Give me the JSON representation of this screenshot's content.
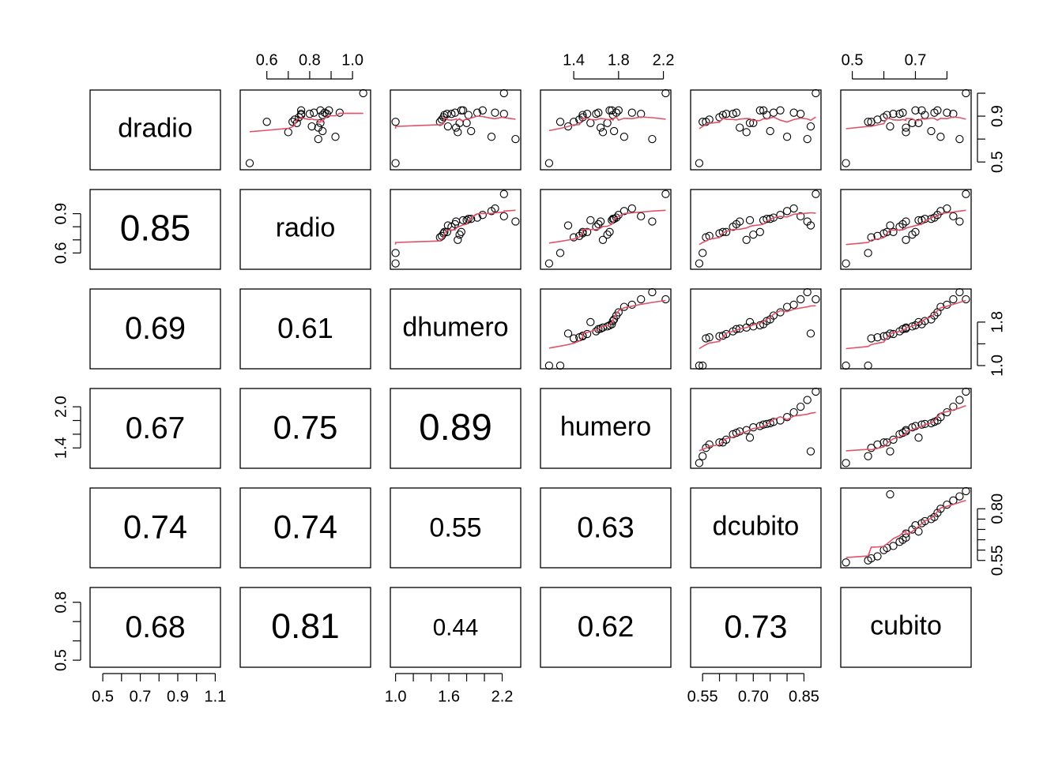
{
  "chart_data": {
    "type": "scatter",
    "title": "",
    "grid": false,
    "variables": [
      "dradio",
      "radio",
      "dhumero",
      "humero",
      "dcubito",
      "cubito"
    ],
    "colors": {
      "points": "#000000",
      "smooth_line": "#df536b",
      "panel_border": "#000000"
    },
    "axes": [
      {
        "name": "dradio",
        "range": [
          0.46,
          1.1
        ],
        "ticks": [
          0.5,
          0.7,
          0.9
        ],
        "tick_labels": [
          "0.5",
          "0.7",
          "0.9"
        ],
        "minor_ticks": [
          0.5,
          0.6,
          0.7,
          0.8,
          0.9,
          1.0,
          1.1
        ],
        "minor_tick_labels": [
          "0.5",
          "0.7",
          "0.9",
          "1.1"
        ],
        "scale": "linear"
      },
      {
        "name": "radio",
        "range": [
          0.5,
          1.06
        ],
        "ticks": [
          0.6,
          0.9
        ],
        "tick_labels": [
          "0.6",
          "0.9"
        ],
        "top_ticks": [
          0.6,
          0.7,
          0.8,
          0.9,
          1.0
        ],
        "top_tick_labels": [
          "0.6",
          "0.8",
          "1.0"
        ],
        "scale": "linear"
      },
      {
        "name": "dhumero",
        "range": [
          1.0,
          2.35
        ],
        "ticks": [
          1.0,
          1.6,
          2.2
        ],
        "tick_labels": [
          "1.0",
          "1.6",
          "2.2"
        ],
        "right_ticks": [
          1.0,
          1.4,
          1.8
        ],
        "right_tick_labels": [
          "1.0",
          "1.8"
        ],
        "scale": "linear"
      },
      {
        "name": "humero",
        "range": [
          1.15,
          2.22
        ],
        "ticks": [
          1.4,
          1.6,
          1.8,
          2.0
        ],
        "tick_labels": [
          "1.4",
          "2.0"
        ],
        "top_ticks": [
          1.4,
          1.8,
          2.2
        ],
        "top_tick_labels": [
          "1.4",
          "1.8",
          "2.2"
        ],
        "scale": "linear"
      },
      {
        "name": "dcubito",
        "range": [
          0.53,
          0.885
        ],
        "ticks": [
          0.55,
          0.7,
          0.85
        ],
        "tick_labels": [
          "0.55",
          "0.70",
          "0.85"
        ],
        "right_ticks": [
          0.55,
          0.8
        ],
        "right_tick_labels": [
          "0.55",
          "0.80"
        ],
        "scale": "linear"
      },
      {
        "name": "cubito",
        "range": [
          0.48,
          0.86
        ],
        "ticks": [
          0.5,
          0.8
        ],
        "tick_labels": [
          "0.5",
          "0.8"
        ],
        "top_ticks": [
          0.5,
          0.6,
          0.7,
          0.8
        ],
        "top_tick_labels": [
          "0.5",
          "0.7"
        ],
        "right_ticks": [
          0.5,
          0.7,
          0.9
        ],
        "right_tick_labels": [
          "0.5",
          "0.9"
        ],
        "scale": "linear"
      }
    ],
    "correlations": [
      {
        "row": 1,
        "col": 0,
        "value": "0.85"
      },
      {
        "row": 2,
        "col": 0,
        "value": "0.69"
      },
      {
        "row": 2,
        "col": 1,
        "value": "0.61"
      },
      {
        "row": 3,
        "col": 0,
        "value": "0.67"
      },
      {
        "row": 3,
        "col": 1,
        "value": "0.75"
      },
      {
        "row": 3,
        "col": 2,
        "value": "0.89"
      },
      {
        "row": 4,
        "col": 0,
        "value": "0.74"
      },
      {
        "row": 4,
        "col": 1,
        "value": "0.74"
      },
      {
        "row": 4,
        "col": 2,
        "value": "0.55"
      },
      {
        "row": 4,
        "col": 3,
        "value": "0.63"
      },
      {
        "row": 5,
        "col": 0,
        "value": "0.68"
      },
      {
        "row": 5,
        "col": 1,
        "value": "0.81"
      },
      {
        "row": 5,
        "col": 2,
        "value": "0.44"
      },
      {
        "row": 5,
        "col": 3,
        "value": "0.62"
      },
      {
        "row": 5,
        "col": 4,
        "value": "0.73"
      }
    ],
    "observations": {
      "dradio": [
        1.1,
        0.49,
        0.85,
        0.85,
        0.87,
        0.89,
        0.91,
        0.92,
        0.92,
        0.93,
        0.8,
        0.76,
        0.84,
        0.95,
        0.95,
        0.91,
        0.77,
        0.93,
        0.95,
        0.72,
        0.93,
        0.92,
        0.7,
        0.81,
        0.84
      ],
      "radio": [
        1.05,
        0.52,
        0.6,
        0.72,
        0.73,
        0.75,
        0.76,
        0.76,
        0.8,
        0.82,
        0.84,
        0.7,
        0.74,
        0.76,
        0.85,
        0.86,
        0.86,
        0.87,
        0.89,
        0.92,
        0.94,
        0.88,
        0.84,
        0.81,
        0.85
      ],
      "dhumero": [
        2.22,
        1.0,
        1.0,
        1.5,
        1.52,
        1.54,
        1.55,
        1.58,
        1.63,
        1.67,
        1.68,
        1.7,
        1.72,
        1.74,
        1.76,
        1.82,
        1.85,
        1.92,
        1.98,
        2.08,
        2.12,
        2.22,
        2.35,
        1.59,
        1.8
      ],
      "humero": [
        2.22,
        1.18,
        1.28,
        1.4,
        1.45,
        1.48,
        1.48,
        1.52,
        1.6,
        1.62,
        1.64,
        1.66,
        1.7,
        1.72,
        1.74,
        1.75,
        1.76,
        1.78,
        1.8,
        1.85,
        1.92,
        2.0,
        2.1,
        1.35,
        1.55
      ],
      "dcubito": [
        0.885,
        0.54,
        0.55,
        0.56,
        0.57,
        0.6,
        0.61,
        0.62,
        0.64,
        0.65,
        0.66,
        0.68,
        0.7,
        0.72,
        0.73,
        0.74,
        0.75,
        0.76,
        0.78,
        0.8,
        0.82,
        0.84,
        0.86,
        0.87,
        0.69
      ],
      "cubito": [
        0.86,
        0.48,
        0.55,
        0.56,
        0.58,
        0.6,
        0.61,
        0.63,
        0.65,
        0.66,
        0.67,
        0.67,
        0.69,
        0.7,
        0.72,
        0.73,
        0.75,
        0.76,
        0.77,
        0.78,
        0.8,
        0.82,
        0.84,
        0.62,
        0.71
      ]
    },
    "layout_notes": "upper panels: scatter with red smooth line; lower panels: correlation coefficient text; diagonal: variable name"
  }
}
